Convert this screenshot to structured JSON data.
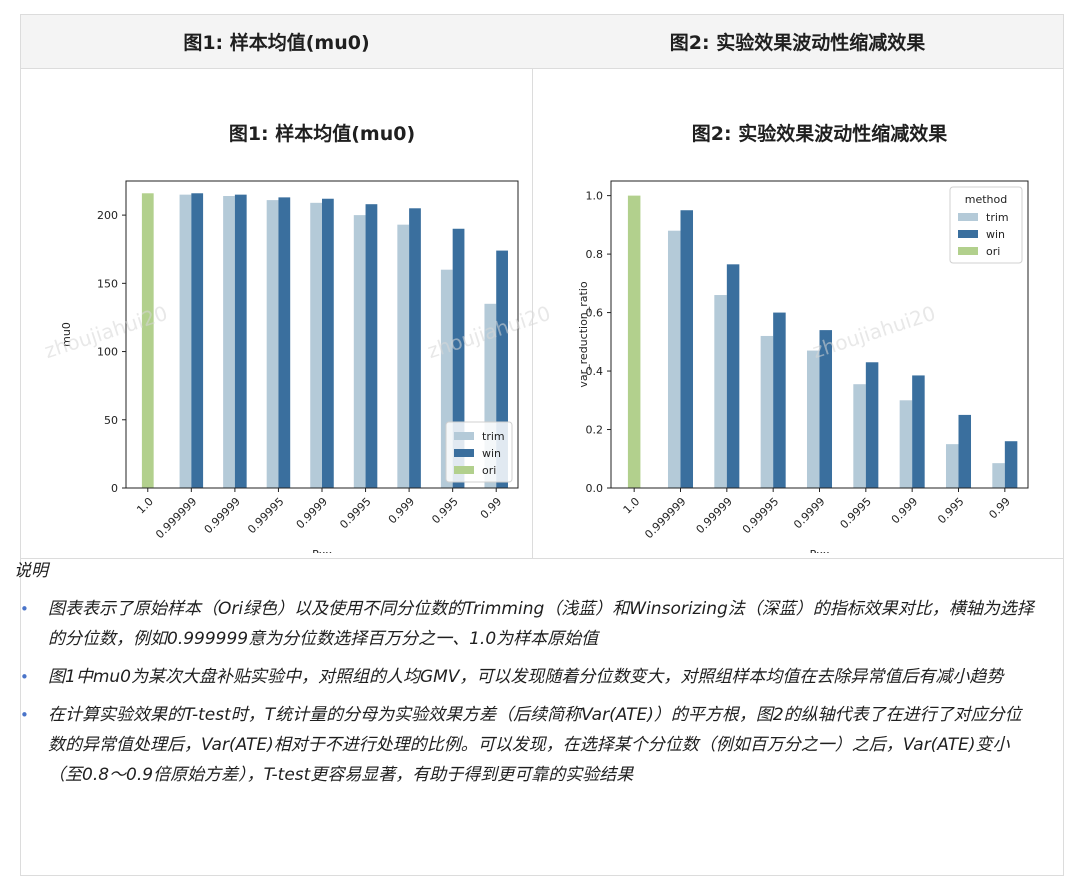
{
  "table": {
    "headers": [
      "图1: 样本均值(mu0)",
      "图2: 实验效果波动性缩减效果"
    ]
  },
  "notes": {
    "title": "说明",
    "items": [
      "图表表示了原始样本（Ori绿色）以及使用不同分位数的Trimming（浅蓝）和Winsorizing法（深蓝）的指标效果对比，横轴为选择的分位数，例如0.999999意为分位数选择百万分之一、1.0为样本原始值",
      "图1中mu0为某次大盘补贴实验中，对照组的人均GMV，可以发现随着分位数变大，对照组样本均值在去除异常值后有减小趋势",
      "在计算实验效果的T-test时，T统计量的分母为实验效果方差（后续简称Var(ATE)）的平方根，图2的纵轴代表了在进行了对应分位数的异常值处理后，Var(ATE)相对于不进行处理的比例。可以发现，在选择某个分位数（例如百万分之一）之后，Var(ATE)变小（至0.8～0.9倍原始方差），T-test更容易显著，有助于得到更可靠的实验结果"
    ]
  },
  "watermark": "zhoujiahui20",
  "colors": {
    "trim": "#b4cad8",
    "win": "#3a6f9e",
    "ori": "#b2d08d"
  },
  "chart_data": [
    {
      "type": "bar",
      "title": "图1: 样本均值(mu0)",
      "xlabel": "Pxx",
      "ylabel": "mu0",
      "categories": [
        "1.0",
        "0.999999",
        "0.99999",
        "0.99995",
        "0.9999",
        "0.9995",
        "0.999",
        "0.995",
        "0.99"
      ],
      "ylim": [
        0,
        225
      ],
      "yticks": [
        0,
        50,
        100,
        150,
        200
      ],
      "ytick_labels": [
        "0",
        "50",
        "100",
        "150",
        "200"
      ],
      "legend": {
        "position": "bottom-right",
        "title": ""
      },
      "series": [
        {
          "name": "trim",
          "values": [
            null,
            215,
            214,
            211,
            209,
            200,
            193,
            160,
            135
          ]
        },
        {
          "name": "win",
          "values": [
            null,
            216,
            215,
            213,
            212,
            208,
            205,
            190,
            174
          ]
        },
        {
          "name": "ori",
          "values": [
            216,
            null,
            null,
            null,
            null,
            null,
            null,
            null,
            null
          ]
        }
      ]
    },
    {
      "type": "bar",
      "title": "图2: 实验效果波动性缩减效果",
      "xlabel": "Pxx",
      "ylabel": "var_reduction_ratio",
      "categories": [
        "1.0",
        "0.999999",
        "0.99999",
        "0.99995",
        "0.9999",
        "0.9995",
        "0.999",
        "0.995",
        "0.99"
      ],
      "ylim": [
        0,
        1.05
      ],
      "yticks": [
        0,
        0.2,
        0.4,
        0.6,
        0.8,
        1.0
      ],
      "ytick_labels": [
        "0.0",
        "0.2",
        "0.4",
        "0.6",
        "0.8",
        "1.0"
      ],
      "legend": {
        "position": "top-right",
        "title": "method"
      },
      "series": [
        {
          "name": "trim",
          "values": [
            null,
            0.88,
            0.66,
            0.52,
            0.47,
            0.355,
            0.3,
            0.15,
            0.085
          ]
        },
        {
          "name": "win",
          "values": [
            null,
            0.95,
            0.765,
            0.6,
            0.54,
            0.43,
            0.385,
            0.25,
            0.16
          ]
        },
        {
          "name": "ori",
          "values": [
            1.0,
            null,
            null,
            null,
            null,
            null,
            null,
            null,
            null
          ]
        }
      ]
    }
  ]
}
